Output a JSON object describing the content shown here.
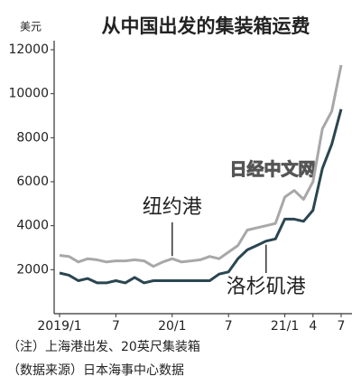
{
  "chart_data": {
    "type": "line",
    "title": "从中国出发的集装箱运费",
    "y_label": "美元",
    "watermark": "日经中文网",
    "notes": [
      "（注）上海港出发、20英尺集装箱",
      "（数据来源）日本海事中心数据"
    ],
    "categories": [
      "2019/1",
      null,
      null,
      null,
      null,
      null,
      "7",
      null,
      null,
      null,
      null,
      null,
      "20/1",
      null,
      null,
      null,
      null,
      null,
      "7",
      null,
      null,
      null,
      null,
      null,
      "21/1",
      null,
      null,
      "4",
      null,
      null,
      "7"
    ],
    "series": [
      {
        "name": "纽约港",
        "color": "#a8a8a8",
        "values": [
          2650,
          2600,
          2350,
          2500,
          2450,
          2350,
          2400,
          2400,
          2450,
          2400,
          2150,
          2350,
          2500,
          2350,
          2400,
          2450,
          2600,
          2500,
          2800,
          3100,
          3800,
          3900,
          4000,
          4100,
          5300,
          5600,
          5200,
          6000,
          8400,
          9200,
          11300
        ]
      },
      {
        "name": "洛杉矶港",
        "color": "#2a4650",
        "values": [
          1850,
          1750,
          1500,
          1600,
          1400,
          1400,
          1500,
          1400,
          1650,
          1400,
          1500,
          1500,
          1500,
          1500,
          1500,
          1500,
          1500,
          1800,
          1900,
          2500,
          2900,
          3100,
          3300,
          3400,
          4300,
          4300,
          4200,
          4700,
          6600,
          7700,
          9300
        ]
      }
    ],
    "ylim": [
      0,
      12000
    ],
    "yticks": [
      2000,
      4000,
      6000,
      8000,
      10000,
      12000
    ]
  }
}
